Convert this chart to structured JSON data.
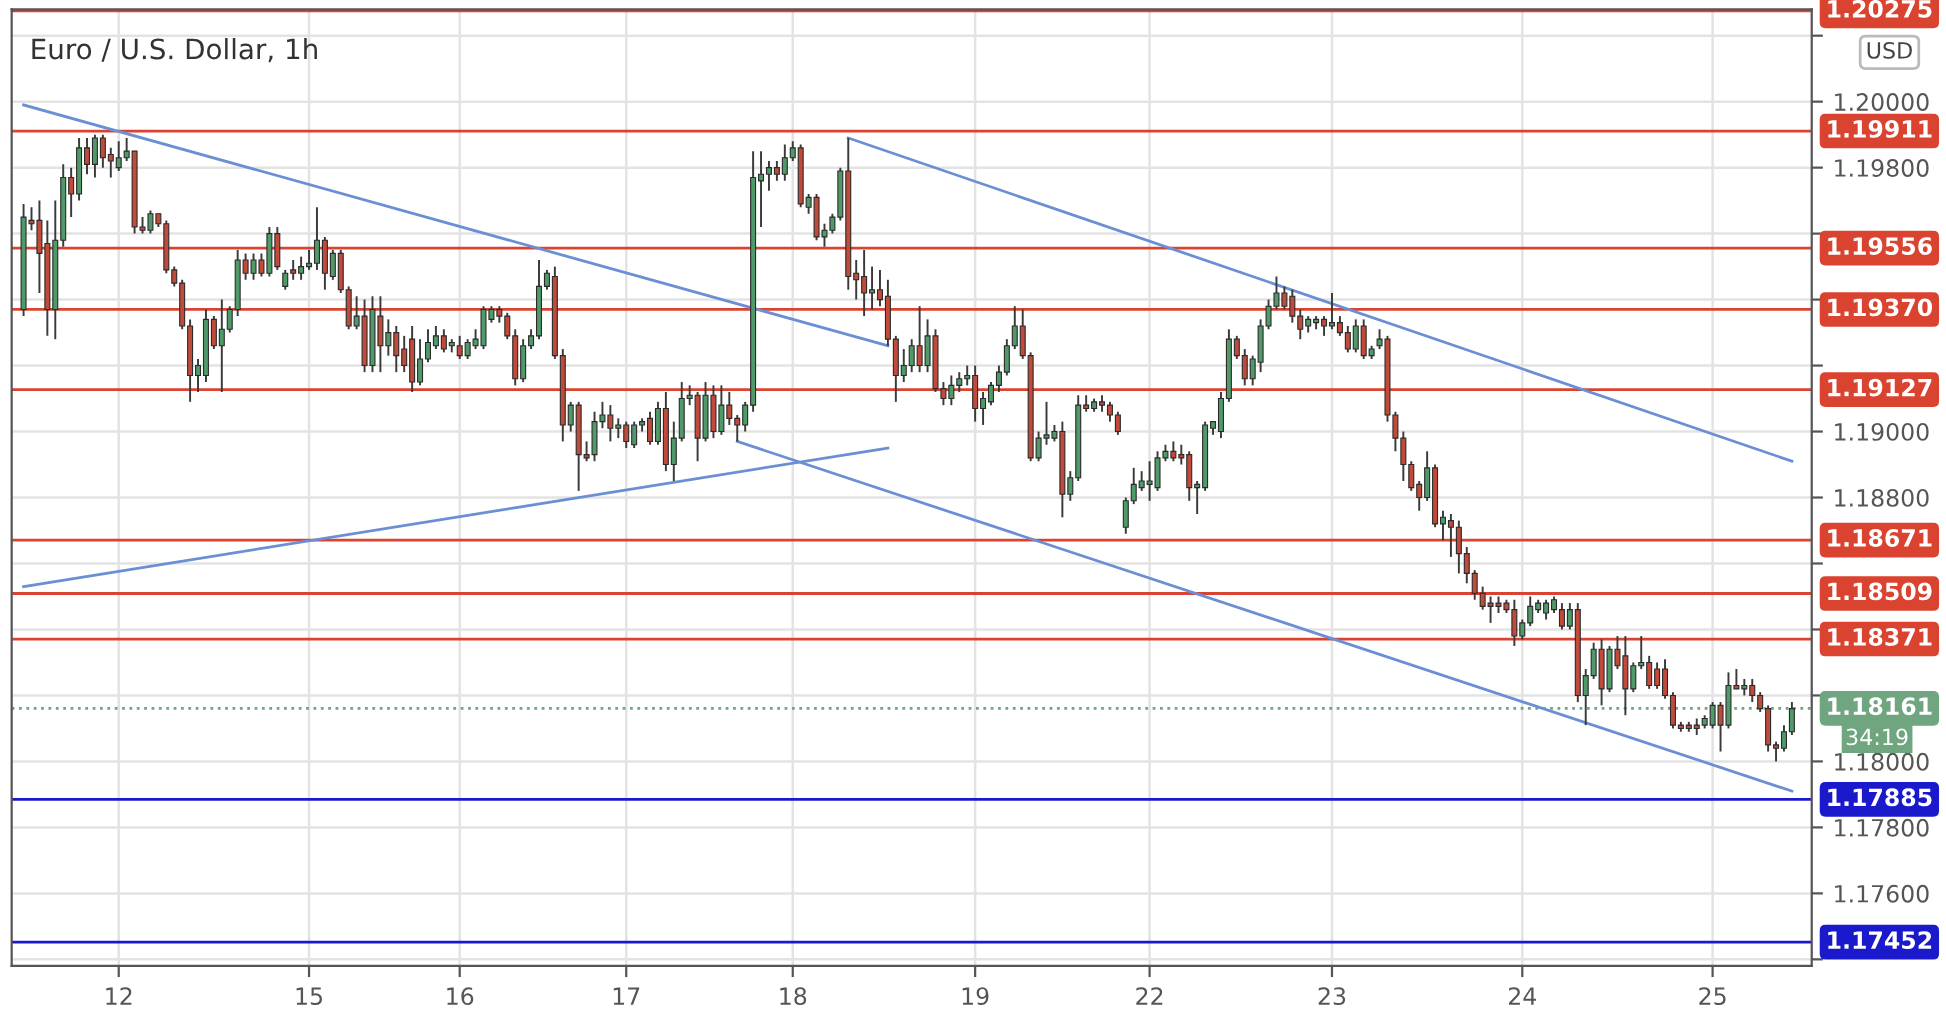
{
  "chart_data": {
    "type": "candlestick",
    "title": "Euro / U.S. Dollar, 1h",
    "categories": [
      null,
      null,
      null,
      null,
      null,
      null,
      null,
      null,
      null,
      null,
      null,
      null,
      "12",
      null,
      null,
      null,
      null,
      null,
      null,
      null,
      null,
      null,
      null,
      null,
      null,
      null,
      null,
      null,
      null,
      null,
      null,
      null,
      null,
      null,
      null,
      null,
      "15",
      null,
      null,
      null,
      null,
      null,
      null,
      null,
      null,
      null,
      null,
      null,
      null,
      null,
      null,
      null,
      null,
      null,
      null,
      "16",
      null,
      null,
      null,
      null,
      null,
      null,
      null,
      null,
      null,
      null,
      null,
      null,
      null,
      null,
      null,
      null,
      null,
      null,
      null,
      null,
      "17",
      null,
      null,
      null,
      null,
      null,
      null,
      null,
      null,
      null,
      null,
      null,
      null,
      null,
      null,
      null,
      null,
      null,
      null,
      null,
      null,
      "18",
      null,
      null,
      null,
      null,
      null,
      null,
      null,
      null,
      null,
      null,
      null,
      null,
      null,
      null,
      null,
      null,
      null,
      null,
      null,
      null,
      null,
      null,
      "19",
      null,
      null,
      null,
      null,
      null,
      null,
      null,
      null,
      null,
      null,
      null,
      null,
      null,
      null,
      null,
      null,
      null,
      null,
      null,
      null,
      null,
      "22",
      null,
      null,
      null,
      null,
      null,
      null,
      null,
      null,
      null,
      null,
      null,
      null,
      null,
      null,
      null,
      null,
      null,
      null,
      null,
      null,
      null,
      null,
      "23",
      null,
      null,
      null,
      null,
      null,
      null,
      null,
      null,
      null,
      null,
      null,
      null,
      null,
      null,
      null,
      null,
      null,
      null,
      null,
      null,
      null,
      null,
      null,
      "24",
      null,
      null,
      null,
      null,
      null,
      null,
      null,
      null,
      null,
      null,
      null,
      null,
      null,
      null,
      null,
      null,
      null,
      null,
      null,
      null,
      null,
      null,
      null,
      "25",
      null,
      null,
      null,
      null,
      null,
      null,
      null,
      null,
      null,
      null
    ],
    "ohlc": [
      [
        1.1937,
        1.1969,
        1.1935,
        1.1965
      ],
      [
        1.1964,
        1.1968,
        1.1961,
        1.1963
      ],
      [
        1.1964,
        1.197,
        1.1942,
        1.1954
      ],
      [
        1.1957,
        1.1964,
        1.1929,
        1.1937
      ],
      [
        1.1937,
        1.197,
        1.1928,
        1.1958
      ],
      [
        1.1958,
        1.1981,
        1.1956,
        1.1977
      ],
      [
        1.1977,
        1.198,
        1.1965,
        1.1972
      ],
      [
        1.1972,
        1.1989,
        1.197,
        1.1986
      ],
      [
        1.1986,
        1.1989,
        1.1978,
        1.1981
      ],
      [
        1.1981,
        1.199,
        1.1977,
        1.1989
      ],
      [
        1.1989,
        1.199,
        1.198,
        1.1983
      ],
      [
        1.1984,
        1.1986,
        1.1977,
        1.1982
      ],
      [
        1.198,
        1.1988,
        1.1979,
        1.1983
      ],
      [
        1.1983,
        1.1989,
        1.1982,
        1.1985
      ],
      [
        1.1985,
        1.1985,
        1.196,
        1.1962
      ],
      [
        1.1962,
        1.1965,
        1.196,
        1.1961
      ],
      [
        1.1961,
        1.1967,
        1.196,
        1.1966
      ],
      [
        1.1966,
        1.1966,
        1.1962,
        1.1963
      ],
      [
        1.1963,
        1.1964,
        1.1948,
        1.1949
      ],
      [
        1.1949,
        1.195,
        1.1944,
        1.1945
      ],
      [
        1.1945,
        1.1946,
        1.1931,
        1.1932
      ],
      [
        1.1932,
        1.1934,
        1.1909,
        1.1917
      ],
      [
        1.1917,
        1.1922,
        1.1912,
        1.192
      ],
      [
        1.1917,
        1.1937,
        1.1915,
        1.1934
      ],
      [
        1.1934,
        1.1935,
        1.1925,
        1.1926
      ],
      [
        1.1926,
        1.194,
        1.1912,
        1.1931
      ],
      [
        1.1931,
        1.1938,
        1.193,
        1.1937
      ],
      [
        1.1937,
        1.1955,
        1.1935,
        1.1952
      ],
      [
        1.1952,
        1.1954,
        1.1946,
        1.1948
      ],
      [
        1.1948,
        1.1954,
        1.1946,
        1.1952
      ],
      [
        1.1952,
        1.1954,
        1.1947,
        1.1948
      ],
      [
        1.1948,
        1.1962,
        1.1947,
        1.196
      ],
      [
        1.196,
        1.1962,
        1.1949,
        1.195
      ],
      [
        1.1944,
        1.1949,
        1.1943,
        1.1948
      ],
      [
        1.1949,
        1.1952,
        1.1946,
        1.1948
      ],
      [
        1.1948,
        1.1953,
        1.1946,
        1.195
      ],
      [
        1.195,
        1.1955,
        1.1949,
        1.1951
      ],
      [
        1.1951,
        1.1968,
        1.1949,
        1.1958
      ],
      [
        1.1958,
        1.1959,
        1.1943,
        1.1948
      ],
      [
        1.1947,
        1.1955,
        1.1946,
        1.1954
      ],
      [
        1.1954,
        1.1955,
        1.1942,
        1.1943
      ],
      [
        1.1943,
        1.1944,
        1.1931,
        1.1932
      ],
      [
        1.1932,
        1.1941,
        1.1931,
        1.1935
      ],
      [
        1.1935,
        1.194,
        1.1918,
        1.192
      ],
      [
        1.192,
        1.1941,
        1.1918,
        1.1937
      ],
      [
        1.1935,
        1.1941,
        1.1918,
        1.1926
      ],
      [
        1.1926,
        1.1934,
        1.1923,
        1.193
      ],
      [
        1.193,
        1.1932,
        1.1918,
        1.1923
      ],
      [
        1.1925,
        1.1929,
        1.1918,
        1.192
      ],
      [
        1.1928,
        1.1932,
        1.1912,
        1.1915
      ],
      [
        1.1915,
        1.1928,
        1.1914,
        1.1922
      ],
      [
        1.1922,
        1.1931,
        1.1921,
        1.1927
      ],
      [
        1.1926,
        1.1932,
        1.1925,
        1.1929
      ],
      [
        1.1929,
        1.1931,
        1.1924,
        1.1925
      ],
      [
        1.1926,
        1.1928,
        1.1924,
        1.1927
      ],
      [
        1.1926,
        1.1929,
        1.1922,
        1.1923
      ],
      [
        1.1923,
        1.1928,
        1.1922,
        1.1927
      ],
      [
        1.1926,
        1.1931,
        1.1925,
        1.1928
      ],
      [
        1.1926,
        1.1938,
        1.1925,
        1.1937
      ],
      [
        1.1934,
        1.1938,
        1.1933,
        1.1937
      ],
      [
        1.1937,
        1.1938,
        1.1933,
        1.1935
      ],
      [
        1.1935,
        1.1936,
        1.1928,
        1.1929
      ],
      [
        1.1929,
        1.1931,
        1.1914,
        1.1916
      ],
      [
        1.1916,
        1.1928,
        1.1915,
        1.1926
      ],
      [
        1.1926,
        1.1931,
        1.1925,
        1.1929
      ],
      [
        1.1929,
        1.1952,
        1.1928,
        1.1944
      ],
      [
        1.1944,
        1.1949,
        1.1943,
        1.1948
      ],
      [
        1.1947,
        1.195,
        1.1922,
        1.1923
      ],
      [
        1.1923,
        1.1925,
        1.1897,
        1.1902
      ],
      [
        1.1902,
        1.1909,
        1.19,
        1.1908
      ],
      [
        1.1908,
        1.1909,
        1.1882,
        1.1893
      ],
      [
        1.1893,
        1.1897,
        1.1891,
        1.1892
      ],
      [
        1.1893,
        1.1906,
        1.1891,
        1.1903
      ],
      [
        1.1903,
        1.1909,
        1.1901,
        1.1905
      ],
      [
        1.1905,
        1.1908,
        1.1897,
        1.1901
      ],
      [
        1.1901,
        1.1904,
        1.1898,
        1.1902
      ],
      [
        1.1902,
        1.1903,
        1.1895,
        1.1897
      ],
      [
        1.1896,
        1.1903,
        1.1895,
        1.1902
      ],
      [
        1.1902,
        1.1904,
        1.19,
        1.1903
      ],
      [
        1.1904,
        1.1906,
        1.1896,
        1.1897
      ],
      [
        1.1897,
        1.1909,
        1.1896,
        1.1907
      ],
      [
        1.1907,
        1.1912,
        1.1888,
        1.189
      ],
      [
        1.189,
        1.1903,
        1.1885,
        1.1898
      ],
      [
        1.1898,
        1.1915,
        1.1897,
        1.191
      ],
      [
        1.191,
        1.1914,
        1.1908,
        1.1911
      ],
      [
        1.1911,
        1.1912,
        1.1891,
        1.1898
      ],
      [
        1.1898,
        1.1915,
        1.1897,
        1.1911
      ],
      [
        1.1911,
        1.1914,
        1.1898,
        1.19
      ],
      [
        1.19,
        1.1914,
        1.1899,
        1.1908
      ],
      [
        1.1908,
        1.1912,
        1.1902,
        1.1904
      ],
      [
        1.1904,
        1.1905,
        1.1897,
        1.1902
      ],
      [
        1.1902,
        1.1909,
        1.19,
        1.1908
      ],
      [
        1.1908,
        1.1985,
        1.1906,
        1.1977
      ],
      [
        1.1976,
        1.1985,
        1.1962,
        1.1978
      ],
      [
        1.1978,
        1.1982,
        1.1973,
        1.198
      ],
      [
        1.198,
        1.1982,
        1.1976,
        1.1978
      ],
      [
        1.1978,
        1.1987,
        1.1976,
        1.1983
      ],
      [
        1.1983,
        1.1988,
        1.1982,
        1.1986
      ],
      [
        1.1986,
        1.1987,
        1.1968,
        1.1969
      ],
      [
        1.1968,
        1.1972,
        1.1966,
        1.1971
      ],
      [
        1.1971,
        1.1972,
        1.1958,
        1.1959
      ],
      [
        1.1959,
        1.1963,
        1.1956,
        1.1961
      ],
      [
        1.1961,
        1.1966,
        1.196,
        1.1965
      ],
      [
        1.1965,
        1.198,
        1.1964,
        1.1979
      ],
      [
        1.1979,
        1.1989,
        1.1943,
        1.1947
      ],
      [
        1.1948,
        1.1952,
        1.194,
        1.1946
      ],
      [
        1.1947,
        1.1955,
        1.1935,
        1.1942
      ],
      [
        1.1942,
        1.195,
        1.1937,
        1.1943
      ],
      [
        1.1943,
        1.1949,
        1.1938,
        1.194
      ],
      [
        1.1941,
        1.1946,
        1.1926,
        1.1928
      ],
      [
        1.1928,
        1.1929,
        1.1909,
        1.1917
      ],
      [
        1.1917,
        1.1925,
        1.1915,
        1.192
      ],
      [
        1.192,
        1.1928,
        1.1918,
        1.1926
      ],
      [
        1.1926,
        1.1938,
        1.1918,
        1.192
      ],
      [
        1.192,
        1.1934,
        1.1918,
        1.1929
      ],
      [
        1.1929,
        1.1931,
        1.1912,
        1.1913
      ],
      [
        1.1913,
        1.1915,
        1.1908,
        1.191
      ],
      [
        1.191,
        1.1917,
        1.1908,
        1.1914
      ],
      [
        1.1914,
        1.1918,
        1.1912,
        1.1916
      ],
      [
        1.1916,
        1.192,
        1.1914,
        1.1917
      ],
      [
        1.1917,
        1.192,
        1.1903,
        1.1907
      ],
      [
        1.1907,
        1.1912,
        1.1902,
        1.191
      ],
      [
        1.1909,
        1.1915,
        1.1908,
        1.1914
      ],
      [
        1.1914,
        1.192,
        1.1912,
        1.1918
      ],
      [
        1.1918,
        1.1928,
        1.1917,
        1.1926
      ],
      [
        1.1926,
        1.1938,
        1.1925,
        1.1932
      ],
      [
        1.1932,
        1.1937,
        1.1922,
        1.1923
      ],
      [
        1.1923,
        1.1924,
        1.1891,
        1.1892
      ],
      [
        1.1892,
        1.19,
        1.1891,
        1.1898
      ],
      [
        1.1898,
        1.1909,
        1.1896,
        1.1899
      ],
      [
        1.1898,
        1.1902,
        1.1897,
        1.19
      ],
      [
        1.19,
        1.1903,
        1.1874,
        1.1881
      ],
      [
        1.1881,
        1.1888,
        1.1879,
        1.1886
      ],
      [
        1.1886,
        1.1911,
        1.1885,
        1.1908
      ],
      [
        1.1908,
        1.1911,
        1.1906,
        1.1907
      ],
      [
        1.1907,
        1.191,
        1.1906,
        1.1909
      ],
      [
        1.1909,
        1.1911,
        1.1906,
        1.1908
      ],
      [
        1.1908,
        1.1909,
        1.1903,
        1.1905
      ],
      [
        1.1905,
        1.1906,
        1.1899,
        1.19
      ],
      [
        1.1871,
        1.188,
        1.1869,
        1.1879
      ],
      [
        1.1879,
        1.1889,
        1.1878,
        1.1884
      ],
      [
        1.1883,
        1.1888,
        1.1882,
        1.1885
      ],
      [
        1.1884,
        1.1891,
        1.1879,
        1.1885
      ],
      [
        1.1883,
        1.1894,
        1.1882,
        1.1892
      ],
      [
        1.1892,
        1.1896,
        1.1891,
        1.1894
      ],
      [
        1.1894,
        1.1897,
        1.1891,
        1.1892
      ],
      [
        1.1893,
        1.1896,
        1.189,
        1.1892
      ],
      [
        1.1893,
        1.1894,
        1.1879,
        1.1883
      ],
      [
        1.1883,
        1.1885,
        1.1875,
        1.1884
      ],
      [
        1.1883,
        1.1903,
        1.1882,
        1.1902
      ],
      [
        1.1901,
        1.1903,
        1.1899,
        1.1903
      ],
      [
        1.19,
        1.1912,
        1.1898,
        1.191
      ],
      [
        1.191,
        1.1931,
        1.1909,
        1.1928
      ],
      [
        1.1928,
        1.1929,
        1.1922,
        1.1923
      ],
      [
        1.1923,
        1.1925,
        1.1914,
        1.1916
      ],
      [
        1.1916,
        1.1923,
        1.1914,
        1.1922
      ],
      [
        1.1921,
        1.1934,
        1.1918,
        1.1932
      ],
      [
        1.1932,
        1.194,
        1.1931,
        1.1938
      ],
      [
        1.1938,
        1.1947,
        1.1937,
        1.1942
      ],
      [
        1.1942,
        1.1944,
        1.1937,
        1.1938
      ],
      [
        1.1941,
        1.1943,
        1.1933,
        1.1935
      ],
      [
        1.1935,
        1.1937,
        1.1928,
        1.1931
      ],
      [
        1.1932,
        1.1935,
        1.193,
        1.1934
      ],
      [
        1.1933,
        1.1935,
        1.1931,
        1.1934
      ],
      [
        1.1934,
        1.1935,
        1.1929,
        1.1932
      ],
      [
        1.1932,
        1.1942,
        1.1931,
        1.1933
      ],
      [
        1.1933,
        1.1935,
        1.1929,
        1.193
      ],
      [
        1.193,
        1.1932,
        1.1924,
        1.1925
      ],
      [
        1.1925,
        1.1934,
        1.1924,
        1.1932
      ],
      [
        1.1932,
        1.1934,
        1.1922,
        1.1923
      ],
      [
        1.1923,
        1.1926,
        1.1922,
        1.1925
      ],
      [
        1.1926,
        1.1931,
        1.1925,
        1.1928
      ],
      [
        1.1928,
        1.1929,
        1.1903,
        1.1905
      ],
      [
        1.1905,
        1.1906,
        1.1894,
        1.1898
      ],
      [
        1.1898,
        1.19,
        1.1885,
        1.189
      ],
      [
        1.189,
        1.1891,
        1.1882,
        1.1883
      ],
      [
        1.1884,
        1.1885,
        1.1876,
        1.188
      ],
      [
        1.188,
        1.1894,
        1.1879,
        1.1889
      ],
      [
        1.1889,
        1.189,
        1.1871,
        1.1872
      ],
      [
        1.1872,
        1.1876,
        1.1867,
        1.1874
      ],
      [
        1.1873,
        1.1875,
        1.1862,
        1.1871
      ],
      [
        1.1871,
        1.1873,
        1.1857,
        1.1863
      ],
      [
        1.1863,
        1.1865,
        1.1854,
        1.1857
      ],
      [
        1.1857,
        1.1858,
        1.1849,
        1.1851
      ],
      [
        1.1851,
        1.1853,
        1.1846,
        1.1847
      ],
      [
        1.1848,
        1.185,
        1.1842,
        1.1847
      ],
      [
        1.1848,
        1.185,
        1.1845,
        1.1847
      ],
      [
        1.1848,
        1.1849,
        1.1845,
        1.1846
      ],
      [
        1.1846,
        1.1849,
        1.1835,
        1.1838
      ],
      [
        1.1838,
        1.1843,
        1.1837,
        1.1842
      ],
      [
        1.1842,
        1.185,
        1.1841,
        1.1847
      ],
      [
        1.1846,
        1.1849,
        1.1845,
        1.1848
      ],
      [
        1.1845,
        1.1849,
        1.1843,
        1.1848
      ],
      [
        1.1846,
        1.185,
        1.1845,
        1.1849
      ],
      [
        1.1846,
        1.1848,
        1.184,
        1.1841
      ],
      [
        1.1841,
        1.1848,
        1.184,
        1.1846
      ],
      [
        1.1846,
        1.1848,
        1.1818,
        1.182
      ],
      [
        1.182,
        1.1828,
        1.1811,
        1.1826
      ],
      [
        1.1826,
        1.1836,
        1.1825,
        1.1834
      ],
      [
        1.1834,
        1.1837,
        1.1817,
        1.1822
      ],
      [
        1.1822,
        1.1835,
        1.1821,
        1.1834
      ],
      [
        1.1834,
        1.1838,
        1.1828,
        1.1829
      ],
      [
        1.1832,
        1.1838,
        1.1814,
        1.1822
      ],
      [
        1.1822,
        1.183,
        1.1821,
        1.1829
      ],
      [
        1.1829,
        1.1838,
        1.1828,
        1.183
      ],
      [
        1.183,
        1.1832,
        1.1822,
        1.1823
      ],
      [
        1.1828,
        1.183,
        1.1822,
        1.1823
      ],
      [
        1.1828,
        1.1831,
        1.1819,
        1.182
      ],
      [
        1.182,
        1.1821,
        1.181,
        1.1811
      ],
      [
        1.1811,
        1.1812,
        1.1809,
        1.181
      ],
      [
        1.1811,
        1.1812,
        1.1809,
        1.181
      ],
      [
        1.1811,
        1.1813,
        1.1808,
        1.181
      ],
      [
        1.1811,
        1.1814,
        1.181,
        1.1813
      ],
      [
        1.1811,
        1.1818,
        1.181,
        1.1817
      ],
      [
        1.1817,
        1.1818,
        1.1803,
        1.1811
      ],
      [
        1.1811,
        1.1827,
        1.181,
        1.1823
      ],
      [
        1.1823,
        1.1828,
        1.1822,
        1.1822
      ],
      [
        1.1822,
        1.1825,
        1.182,
        1.1823
      ],
      [
        1.1823,
        1.1825,
        1.1818,
        1.182
      ],
      [
        1.182,
        1.1821,
        1.1815,
        1.1816
      ],
      [
        1.1816,
        1.1817,
        1.1803,
        1.1805
      ],
      [
        1.1805,
        1.1806,
        1.18,
        1.1804
      ],
      [
        1.1804,
        1.1811,
        1.1803,
        1.1809
      ],
      [
        1.1809,
        1.1818,
        1.1808,
        1.1816
      ]
    ],
    "series": [
      {
        "type": "line",
        "color": "#6b8fd4",
        "values": [
          1.1999,
          null,
          null,
          null,
          null,
          null,
          null,
          null,
          null,
          null,
          null,
          null,
          null,
          null,
          null,
          null,
          null,
          null,
          null,
          null,
          null,
          null,
          null,
          null,
          null,
          null,
          null,
          null,
          null,
          null,
          null,
          null,
          null,
          null,
          null,
          null,
          null,
          null,
          null,
          null,
          null,
          null,
          null,
          null,
          null,
          null,
          null,
          null,
          null,
          null,
          null,
          null,
          null,
          null,
          null,
          null,
          null,
          null,
          null,
          null,
          null,
          null,
          null,
          null,
          null,
          null,
          null,
          null,
          null,
          null,
          null,
          null,
          null,
          null,
          null,
          null,
          null,
          null,
          null,
          null,
          null,
          null,
          null,
          null,
          null,
          null,
          null,
          null,
          null,
          null,
          null,
          null,
          null,
          null,
          null,
          null,
          null,
          null,
          null,
          null,
          null,
          null,
          null,
          null,
          null,
          null,
          null,
          null,
          null,
          1.1926,
          null,
          null,
          null,
          null,
          null,
          null,
          null,
          null,
          null,
          null,
          null,
          null,
          null,
          null,
          null,
          null,
          null,
          null,
          null,
          null,
          null,
          null,
          null,
          null,
          null,
          null,
          null,
          null,
          null,
          null,
          null,
          null,
          null,
          null,
          null,
          null,
          null,
          null,
          null,
          null,
          null,
          null,
          null,
          null,
          null,
          null,
          null,
          null,
          null,
          null,
          null,
          null,
          null,
          null,
          null,
          null,
          null,
          null,
          null,
          null,
          null,
          null,
          null,
          null,
          null,
          null,
          null,
          null,
          null,
          null,
          null,
          null,
          null,
          null,
          null,
          null,
          null,
          null,
          null,
          null,
          null,
          null,
          null,
          null,
          null,
          null,
          null,
          null,
          null,
          null,
          null,
          null,
          null,
          null,
          null,
          null,
          null,
          null,
          null,
          null,
          null,
          null,
          null,
          null,
          null,
          null,
          null,
          null,
          null,
          null,
          null,
          null,
          null,
          null
        ]
      },
      {
        "type": "line",
        "color": "#6b8fd4",
        "values": [
          null,
          null,
          null,
          null,
          null,
          null,
          null,
          null,
          null,
          null,
          null,
          null,
          null,
          null,
          null,
          null,
          null,
          null,
          null,
          null,
          null,
          null,
          null,
          null,
          null,
          null,
          null,
          null,
          null,
          null,
          null,
          null,
          null,
          null,
          null,
          null,
          null,
          null,
          null,
          null,
          null,
          null,
          null,
          null,
          null,
          null,
          null,
          null,
          null,
          null,
          null,
          null,
          null,
          null,
          null,
          null,
          null,
          null,
          null,
          null,
          null,
          null,
          null,
          null,
          null,
          null,
          null,
          null,
          null,
          null,
          null,
          null,
          null,
          null,
          null,
          null,
          null,
          null,
          null,
          null,
          null,
          null,
          null,
          null,
          null,
          null,
          null,
          null,
          null,
          null,
          null,
          null,
          null,
          null,
          null,
          null,
          null,
          null,
          null,
          null,
          null,
          null,
          null,
          null,
          1.1989,
          null,
          null,
          null,
          null,
          null,
          null,
          null,
          null,
          null,
          null,
          null,
          null,
          null,
          null,
          null,
          null,
          null,
          null,
          null,
          null,
          null,
          null,
          null,
          null,
          null,
          null,
          null,
          null,
          null,
          null,
          null,
          null,
          null,
          null,
          null,
          null,
          null,
          null,
          null,
          null,
          null,
          null,
          null,
          null,
          null,
          null,
          null,
          null,
          null,
          null,
          null,
          null,
          null,
          null,
          null,
          null,
          null,
          null,
          null,
          null,
          null,
          null,
          null,
          null,
          null,
          null,
          null,
          null,
          null,
          null,
          null,
          null,
          null,
          null,
          null,
          null,
          null,
          null,
          null,
          null,
          null,
          null,
          null,
          null,
          null,
          null,
          null,
          null,
          null,
          null,
          null,
          null,
          null,
          null,
          null,
          null,
          null,
          null,
          null,
          null,
          null,
          null,
          null,
          null,
          null,
          null,
          null,
          null,
          null,
          null,
          null,
          null,
          null,
          null,
          null,
          null,
          null,
          null,
          1.1891
        ]
      },
      {
        "type": "line",
        "color": "#6b8fd4",
        "values": [
          1.1853,
          null,
          null,
          null,
          null,
          null,
          null,
          null,
          null,
          null,
          null,
          null,
          null,
          null,
          null,
          null,
          null,
          null,
          null,
          null,
          null,
          null,
          null,
          null,
          null,
          null,
          null,
          null,
          null,
          null,
          null,
          null,
          null,
          null,
          null,
          null,
          null,
          null,
          null,
          null,
          null,
          null,
          null,
          null,
          null,
          null,
          null,
          null,
          null,
          null,
          null,
          null,
          null,
          null,
          null,
          null,
          null,
          null,
          null,
          null,
          null,
          null,
          null,
          null,
          null,
          null,
          null,
          null,
          null,
          null,
          null,
          null,
          null,
          null,
          null,
          null,
          null,
          null,
          null,
          null,
          null,
          null,
          null,
          null,
          null,
          null,
          null,
          null,
          null,
          null,
          null,
          null,
          null,
          null,
          null,
          null,
          null,
          null,
          null,
          null,
          null,
          null,
          null,
          null,
          null,
          null,
          null,
          null,
          null,
          1.1895,
          null,
          null,
          null,
          null,
          null,
          null,
          null,
          null,
          null,
          null,
          null,
          null,
          null,
          null,
          null,
          null,
          null,
          null,
          null,
          null,
          null,
          null,
          null,
          null,
          null,
          null,
          null,
          null,
          null,
          null,
          null,
          null,
          null,
          null,
          null,
          null,
          null,
          null,
          null,
          null,
          null,
          null,
          null,
          null,
          null,
          null,
          null,
          null,
          null,
          null,
          null,
          null,
          null,
          null,
          null,
          null,
          null,
          null,
          null,
          null,
          null,
          null,
          null,
          null,
          null,
          null,
          null,
          null,
          null,
          null,
          null,
          null,
          null,
          null,
          null,
          null,
          null,
          null,
          null,
          null,
          null,
          null,
          null,
          null,
          null,
          null,
          null,
          null,
          null,
          null,
          null,
          null,
          null,
          null,
          null,
          null,
          null,
          null,
          null,
          null,
          null,
          null,
          null,
          null,
          null,
          null,
          null,
          null,
          null,
          null,
          null,
          null,
          null,
          null
        ]
      },
      {
        "type": "line",
        "color": "#6b8fd4",
        "values": [
          null,
          null,
          null,
          null,
          null,
          null,
          null,
          null,
          null,
          null,
          null,
          null,
          null,
          null,
          null,
          null,
          null,
          null,
          null,
          null,
          null,
          null,
          null,
          null,
          null,
          null,
          null,
          null,
          null,
          null,
          null,
          null,
          null,
          null,
          null,
          null,
          null,
          null,
          null,
          null,
          null,
          null,
          null,
          null,
          null,
          null,
          null,
          null,
          null,
          null,
          null,
          null,
          null,
          null,
          null,
          null,
          null,
          null,
          null,
          null,
          null,
          null,
          null,
          null,
          null,
          null,
          null,
          null,
          null,
          null,
          null,
          null,
          null,
          null,
          null,
          null,
          null,
          null,
          null,
          null,
          null,
          null,
          null,
          null,
          null,
          null,
          null,
          null,
          null,
          null,
          1.1897,
          null,
          null,
          null,
          null,
          null,
          null,
          null,
          null,
          null,
          null,
          null,
          null,
          null,
          null,
          null,
          null,
          null,
          null,
          null,
          null,
          null,
          null,
          null,
          null,
          null,
          null,
          null,
          null,
          null,
          null,
          null,
          null,
          null,
          null,
          null,
          null,
          null,
          null,
          null,
          null,
          null,
          null,
          null,
          null,
          null,
          null,
          null,
          null,
          null,
          null,
          null,
          null,
          null,
          null,
          null,
          null,
          null,
          null,
          null,
          null,
          null,
          null,
          null,
          null,
          null,
          null,
          null,
          null,
          null,
          null,
          null,
          null,
          null,
          null,
          null,
          null,
          null,
          null,
          null,
          null,
          null,
          null,
          null,
          null,
          null,
          null,
          null,
          null,
          null,
          null,
          null,
          null,
          null,
          null,
          null,
          null,
          null,
          null,
          null,
          null,
          null,
          null,
          null,
          null,
          null,
          null,
          null,
          null,
          null,
          null,
          null,
          null,
          null,
          null,
          null,
          null,
          null,
          null,
          null,
          null,
          null,
          null,
          null,
          null,
          null,
          null,
          null,
          null,
          null,
          null,
          null,
          null,
          1.1791
        ]
      }
    ],
    "ylim": [
      1.1738,
      1.2028
    ],
    "yticks": [
      {
        "value": 1.174,
        "label": null
      },
      {
        "value": 1.176,
        "label": "1.17600"
      },
      {
        "value": 1.178,
        "label": "1.17800"
      },
      {
        "value": 1.18,
        "label": "1.18000"
      },
      {
        "value": 1.182,
        "label": null
      },
      {
        "value": 1.184,
        "label": null
      },
      {
        "value": 1.186,
        "label": null
      },
      {
        "value": 1.188,
        "label": "1.18800"
      },
      {
        "value": 1.19,
        "label": "1.19000"
      },
      {
        "value": 1.192,
        "label": null
      },
      {
        "value": 1.194,
        "label": null
      },
      {
        "value": 1.196,
        "label": null
      },
      {
        "value": 1.198,
        "label": "1.19800"
      },
      {
        "value": 1.2,
        "label": "1.20000"
      },
      {
        "value": 1.202,
        "label": null
      }
    ],
    "ref_lines": [
      {
        "axis": "y",
        "value": 1.20275,
        "label": "1.20275",
        "color": "#d9432f"
      },
      {
        "axis": "y",
        "value": 1.19911,
        "label": "1.19911",
        "color": "#d9432f"
      },
      {
        "axis": "y",
        "value": 1.19556,
        "label": "1.19556",
        "color": "#d9432f"
      },
      {
        "axis": "y",
        "value": 1.1937,
        "label": "1.19370",
        "color": "#d9432f"
      },
      {
        "axis": "y",
        "value": 1.19127,
        "label": "1.19127",
        "color": "#d9432f"
      },
      {
        "axis": "y",
        "value": 1.18671,
        "label": "1.18671",
        "color": "#d9432f"
      },
      {
        "axis": "y",
        "value": 1.18509,
        "label": "1.18509",
        "color": "#d9432f"
      },
      {
        "axis": "y",
        "value": 1.18371,
        "label": "1.18371",
        "color": "#d9432f"
      },
      {
        "axis": "y",
        "value": 1.18161,
        "label": "1.18161",
        "color": "#6fa57f",
        "line_style": "dotted"
      },
      {
        "axis": "y",
        "value": 1.17885,
        "label": "1.17885",
        "color": "#1a1acc"
      },
      {
        "axis": "y",
        "value": 1.17452,
        "label": "1.17452",
        "color": "#1a1acc"
      }
    ],
    "annotations": [
      "USD",
      "34:19"
    ],
    "grid": true,
    "legend": false
  }
}
